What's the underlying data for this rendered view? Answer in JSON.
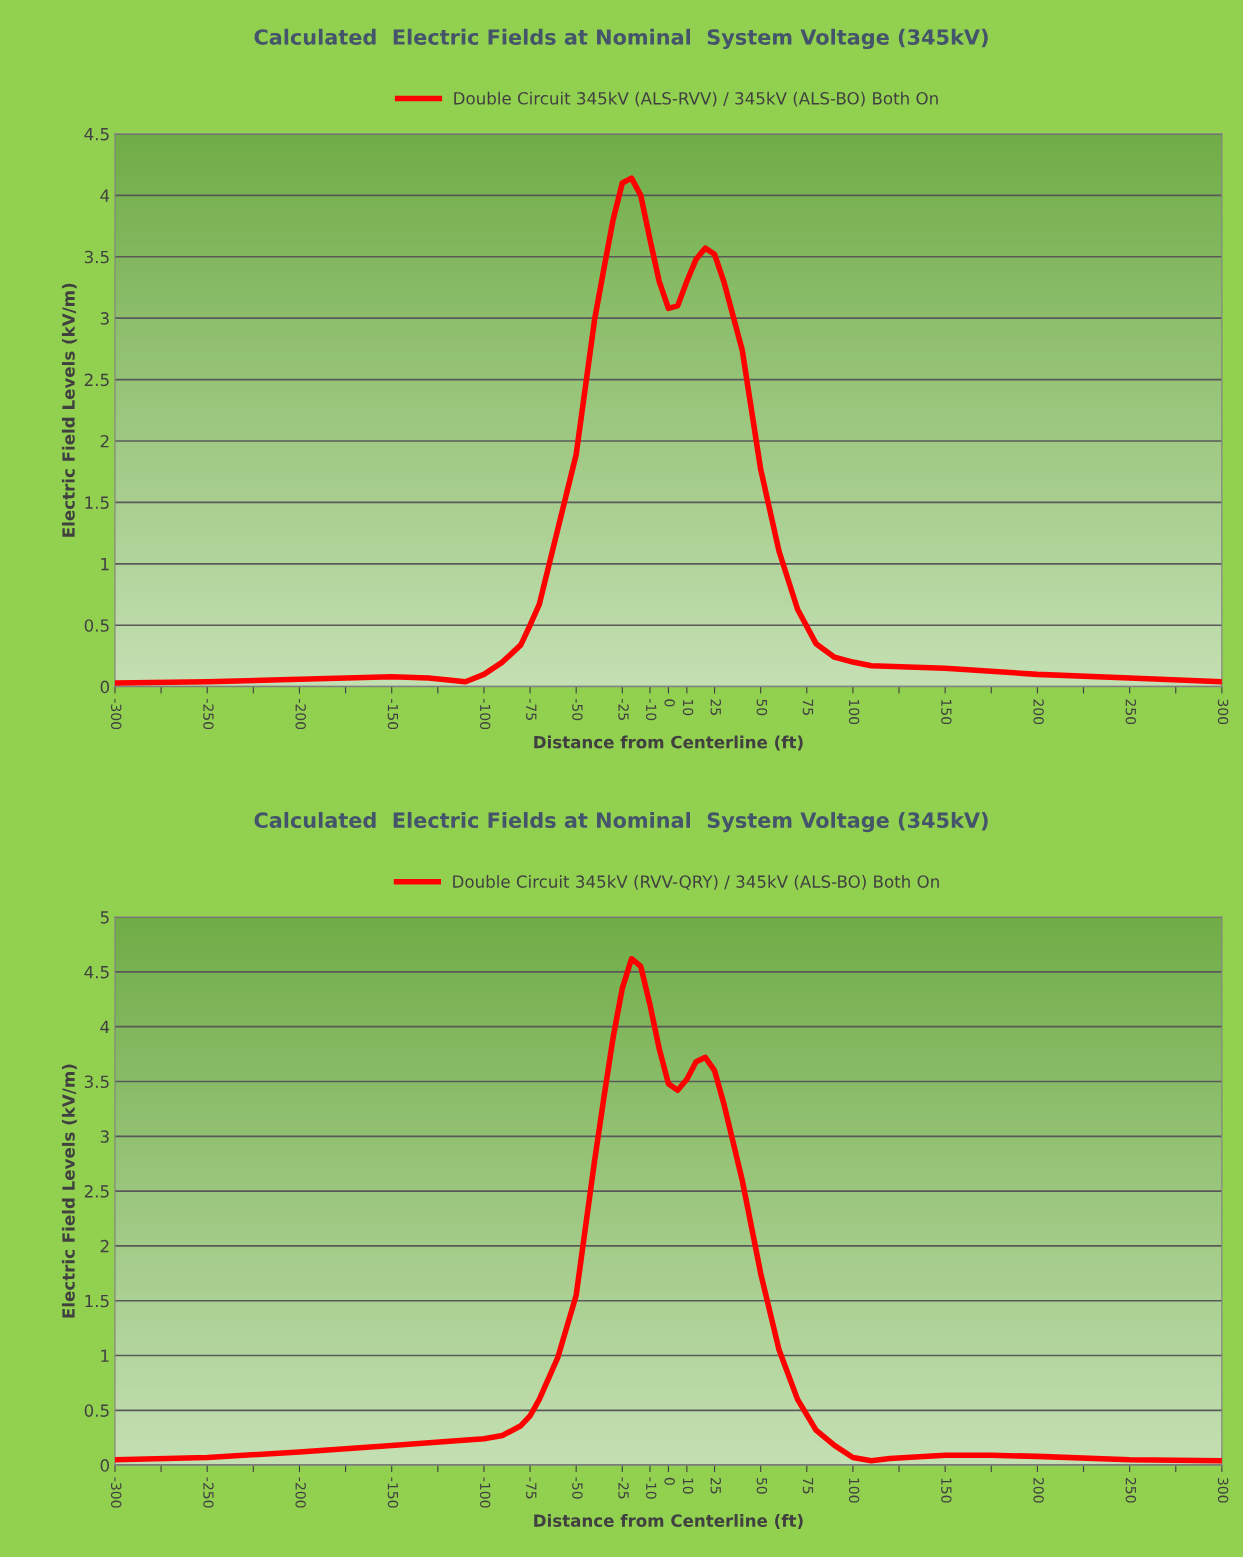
{
  "chart_data": [
    {
      "type": "line",
      "title": "Calculated  Electric Fields at Nominal  System Voltage (345kV)",
      "xlabel": "Distance from Centerline (ft)",
      "ylabel": "Electric Field Levels (kV/m)",
      "legend": "top",
      "grid": "y",
      "marker": "none",
      "line_style": "solid",
      "xlim": [
        -300,
        300
      ],
      "ylim": [
        0,
        4.5
      ],
      "yticks": [
        0,
        0.5,
        1,
        1.5,
        2,
        2.5,
        3,
        3.5,
        4,
        4.5
      ],
      "xticks": [
        -300,
        {
          "value": -275,
          "label": null
        },
        -250,
        {
          "value": -225,
          "label": null
        },
        -200,
        {
          "value": -175,
          "label": null
        },
        -150,
        {
          "value": -125,
          "label": null
        },
        -100,
        -75,
        -50,
        -25,
        -10,
        0,
        10,
        25,
        50,
        75,
        100,
        {
          "value": 125,
          "label": null
        },
        150,
        {
          "value": 175,
          "label": null
        },
        200,
        {
          "value": 225,
          "label": null
        },
        250,
        {
          "value": 275,
          "label": null
        },
        300
      ],
      "series": [
        {
          "name": "Double Circuit 345kV (ALS-RVV) / 345kV (ALS-BO) Both On",
          "color": "#ff0000",
          "x": [
            -300,
            -250,
            -200,
            -175,
            -150,
            -130,
            -110,
            -100,
            -90,
            -80,
            -75,
            -70,
            -60,
            -50,
            -40,
            -35,
            -30,
            -25,
            -20,
            -15,
            -10,
            -5,
            0,
            5,
            10,
            15,
            20,
            25,
            30,
            40,
            50,
            60,
            70,
            80,
            90,
            100,
            110,
            150,
            200,
            250,
            300
          ],
          "values": [
            0.03,
            0.04,
            0.06,
            0.07,
            0.08,
            0.07,
            0.04,
            0.1,
            0.2,
            0.34,
            0.5,
            0.67,
            1.28,
            1.89,
            2.99,
            3.4,
            3.8,
            4.1,
            4.14,
            4.0,
            3.64,
            3.3,
            3.08,
            3.1,
            3.3,
            3.48,
            3.57,
            3.52,
            3.3,
            2.74,
            1.77,
            1.1,
            0.63,
            0.35,
            0.24,
            0.2,
            0.17,
            0.15,
            0.1,
            0.07,
            0.04
          ]
        }
      ]
    },
    {
      "type": "line",
      "title": "Calculated  Electric Fields at Nominal  System Voltage (345kV)",
      "xlabel": "Distance from Centerline (ft)",
      "ylabel": "Electric Field Levels (kV/m)",
      "legend": "top",
      "grid": "y",
      "marker": "none",
      "line_style": "solid",
      "xlim": [
        -300,
        300
      ],
      "ylim": [
        0,
        5
      ],
      "yticks": [
        0,
        0.5,
        1,
        1.5,
        2,
        2.5,
        3,
        3.5,
        4,
        4.5,
        5
      ],
      "xticks": [
        -300,
        {
          "value": -275,
          "label": null
        },
        -250,
        {
          "value": -225,
          "label": null
        },
        -200,
        {
          "value": -175,
          "label": null
        },
        -150,
        {
          "value": -125,
          "label": null
        },
        -100,
        -75,
        -50,
        -25,
        -10,
        0,
        10,
        25,
        50,
        75,
        100,
        {
          "value": 125,
          "label": null
        },
        150,
        {
          "value": 175,
          "label": null
        },
        200,
        {
          "value": 225,
          "label": null
        },
        250,
        {
          "value": 275,
          "label": null
        },
        300
      ],
      "series": [
        {
          "name": "Double Circuit 345kV (RVV-QRY) / 345kV (ALS-BO) Both On",
          "color": "#ff0000",
          "x": [
            -300,
            -250,
            -200,
            -150,
            -100,
            -90,
            -80,
            -75,
            -70,
            -60,
            -50,
            -40,
            -35,
            -30,
            -25,
            -20,
            -15,
            -10,
            -5,
            0,
            5,
            10,
            15,
            20,
            25,
            30,
            40,
            50,
            60,
            70,
            80,
            90,
            100,
            110,
            120,
            150,
            175,
            200,
            250,
            300
          ],
          "values": [
            0.05,
            0.07,
            0.12,
            0.18,
            0.24,
            0.27,
            0.36,
            0.45,
            0.6,
            0.98,
            1.55,
            2.78,
            3.35,
            3.9,
            4.35,
            4.62,
            4.55,
            4.2,
            3.8,
            3.48,
            3.42,
            3.52,
            3.68,
            3.72,
            3.6,
            3.3,
            2.6,
            1.75,
            1.05,
            0.6,
            0.32,
            0.18,
            0.07,
            0.04,
            0.06,
            0.09,
            0.09,
            0.08,
            0.05,
            0.04
          ]
        }
      ]
    }
  ]
}
